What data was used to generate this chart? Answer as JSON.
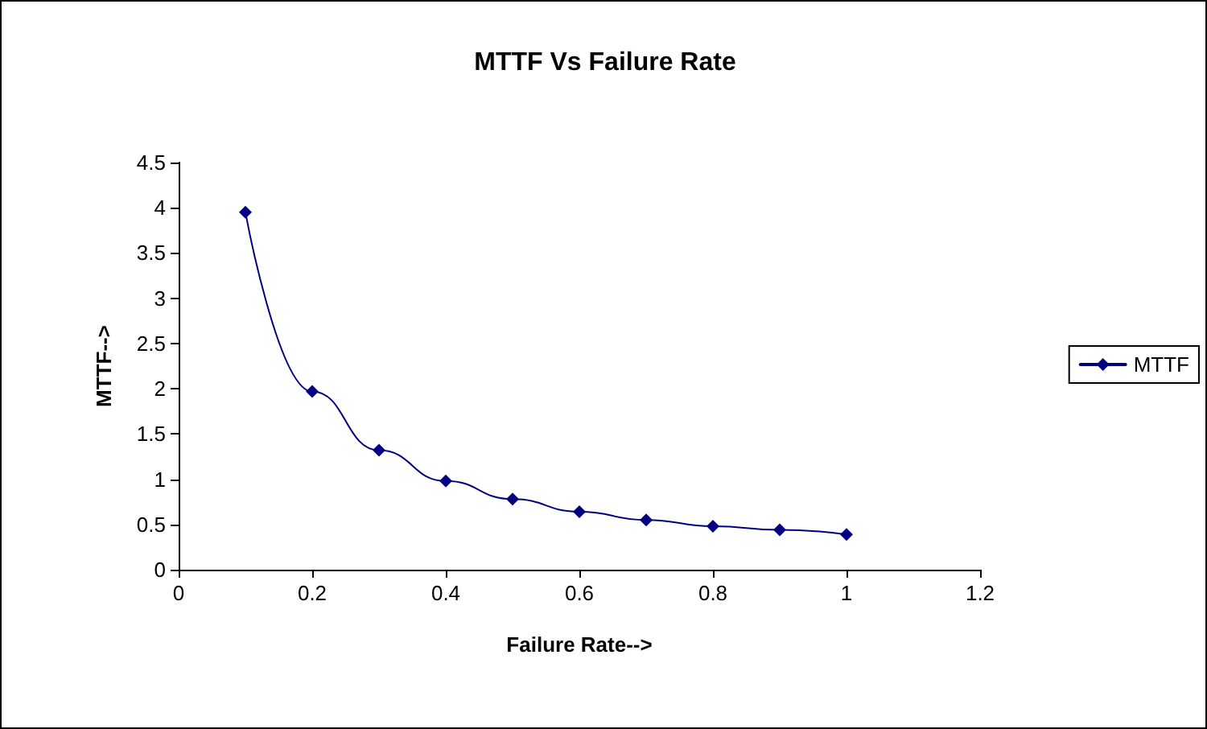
{
  "chart_data": {
    "type": "line",
    "title": "MTTF Vs Failure Rate",
    "xlabel": "Failure Rate-->",
    "ylabel": "MTTF-->",
    "x": [
      0.1,
      0.2,
      0.3,
      0.4,
      0.5,
      0.6,
      0.7,
      0.8,
      0.9,
      1.0
    ],
    "series": [
      {
        "name": "MTTF",
        "color": "#000080",
        "values": [
          3.95,
          1.97,
          1.32,
          0.98,
          0.78,
          0.64,
          0.55,
          0.48,
          0.44,
          0.39
        ]
      }
    ],
    "xlim": [
      0,
      1.2
    ],
    "xticks": [
      0,
      0.2,
      0.4,
      0.6,
      0.8,
      1,
      1.2
    ],
    "ylim": [
      0,
      4.5
    ],
    "yticks": [
      0,
      0.5,
      1,
      1.5,
      2,
      2.5,
      3,
      3.5,
      4,
      4.5
    ],
    "grid": false,
    "legend": "right",
    "marker": "diamond",
    "line_style": "solid"
  }
}
